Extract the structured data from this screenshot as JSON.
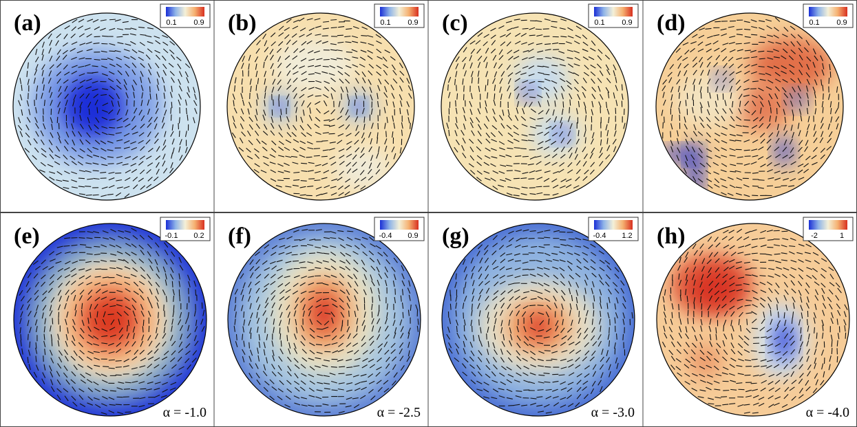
{
  "panels": [
    {
      "label": "(a)",
      "colorbar": {
        "min_label": "0.1",
        "max_label": "0.9"
      }
    },
    {
      "label": "(b)",
      "colorbar": {
        "min_label": "0.1",
        "max_label": "0.9"
      }
    },
    {
      "label": "(c)",
      "colorbar": {
        "min_label": "0.1",
        "max_label": "0.9"
      }
    },
    {
      "label": "(d)",
      "colorbar": {
        "min_label": "0.1",
        "max_label": "0.9"
      }
    },
    {
      "label": "(e)",
      "colorbar": {
        "min_label": "-0.1",
        "max_label": "0.2"
      },
      "annotation": "α = -1.0"
    },
    {
      "label": "(f)",
      "colorbar": {
        "min_label": "-0.4",
        "max_label": "0.9"
      },
      "annotation": "α = -2.5"
    },
    {
      "label": "(g)",
      "colorbar": {
        "min_label": "-0.4",
        "max_label": "1.2"
      },
      "annotation": "α = -3.0"
    },
    {
      "label": "(h)",
      "colorbar": {
        "min_label": "-2",
        "max_label": "1"
      },
      "annotation": "α = -4.0"
    }
  ]
}
